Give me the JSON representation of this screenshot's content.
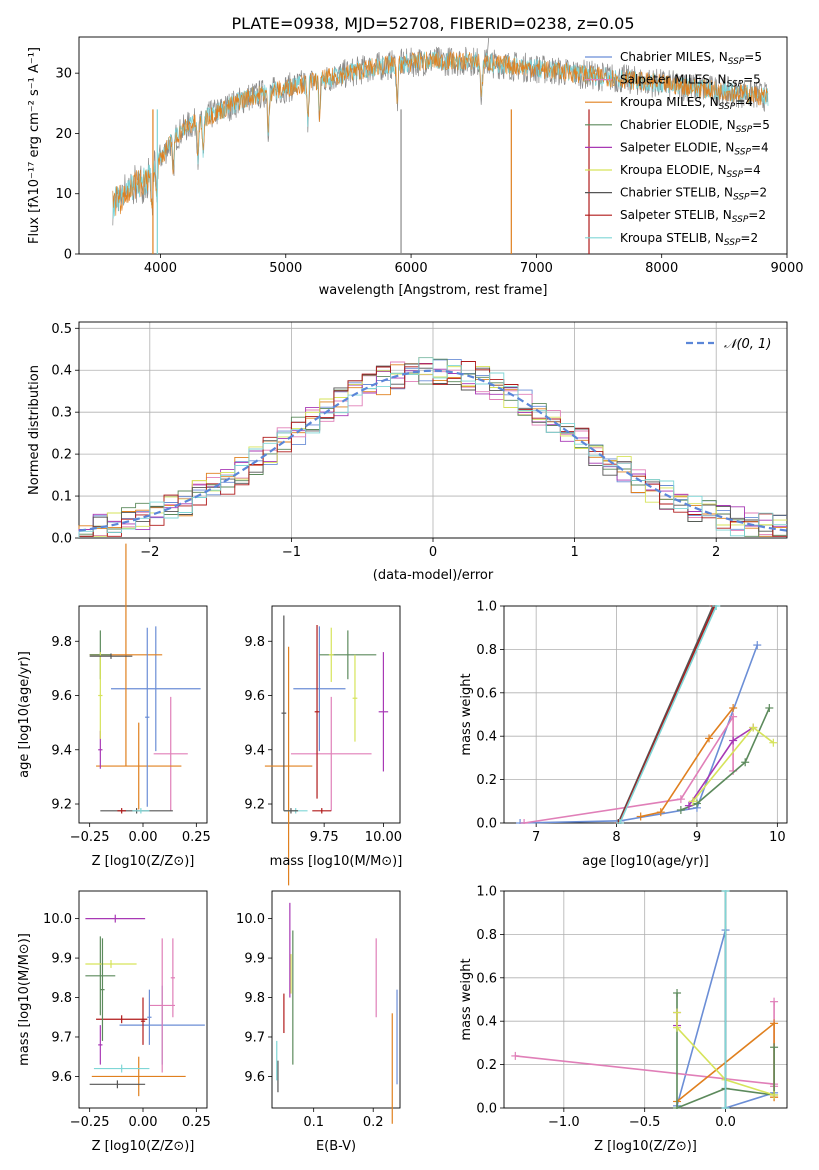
{
  "figure": {
    "title": "PLATE=0938, MJD=52708, FIBERID=0238, z=0.05"
  },
  "colors": {
    "chab_miles": "#6b8ed6",
    "salp_miles": "#e07fb8",
    "krou_miles": "#e0801f",
    "chab_elodie": "#5c8a5c",
    "salp_elodie": "#a839b5",
    "krou_elodie": "#d6e35a",
    "chab_stelib": "#555555",
    "salp_stelib": "#b01a1a",
    "krou_stelib": "#7fd6d6",
    "normal_curve": "#5b86d8",
    "spec_gray": "#8a8a8a",
    "spec_cyan": "#7ad3d6",
    "grid": "#b0b0b0"
  },
  "chart_data": [
    {
      "id": "spectrum",
      "type": "line",
      "xlabel": "wavelength [Angstrom, rest frame]",
      "ylabel": "Flux [fλ10⁻¹⁷ erg cm⁻² s⁻¹ A⁻¹]",
      "xlim": [
        3350,
        9000
      ],
      "ylim": [
        0,
        36
      ],
      "xticks": [
        4000,
        5000,
        6000,
        7000,
        8000,
        9000
      ],
      "yticks": [
        0,
        10,
        20,
        30
      ],
      "grid": false,
      "legend_position": "top-right",
      "legend": [
        {
          "key": "chab_miles",
          "label": "Chabrier MILES, N",
          "sub": "SSP",
          "tail": "=5"
        },
        {
          "key": "salp_miles",
          "label": "Salpeter MILES, N",
          "sub": "SSP",
          "tail": "=5"
        },
        {
          "key": "krou_miles",
          "label": "Kroupa MILES, N",
          "sub": "SSP",
          "tail": "=4"
        },
        {
          "key": "chab_elodie",
          "label": "Chabrier ELODIE, N",
          "sub": "SSP",
          "tail": "=5"
        },
        {
          "key": "salp_elodie",
          "label": "Salpeter ELODIE, N",
          "sub": "SSP",
          "tail": "=4"
        },
        {
          "key": "krou_elodie",
          "label": "Kroupa ELODIE, N",
          "sub": "SSP",
          "tail": "=4"
        },
        {
          "key": "chab_stelib",
          "label": "Chabrier STELIB, N",
          "sub": "SSP",
          "tail": "=2"
        },
        {
          "key": "salp_stelib",
          "label": "Salpeter STELIB, N",
          "sub": "SSP",
          "tail": "=2"
        },
        {
          "key": "krou_stelib",
          "label": "Kroupa STELIB, N",
          "sub": "SSP",
          "tail": "=2"
        }
      ],
      "continuum_x": [
        3620,
        3700,
        3800,
        3900,
        4000,
        4100,
        4200,
        4300,
        4400,
        4500,
        4700,
        4900,
        5100,
        5300,
        5500,
        5700,
        5900,
        6100,
        6300,
        6500,
        6700,
        6900,
        7100,
        7300,
        7500,
        7700,
        7900,
        8100,
        8300,
        8500,
        8700,
        8850
      ],
      "continuum_y": [
        10,
        11,
        13,
        14,
        16,
        19,
        21,
        22,
        23,
        24,
        26,
        27,
        28,
        29,
        30,
        31,
        31.5,
        32,
        32,
        32,
        31.5,
        31,
        30.5,
        30,
        29.5,
        29,
        28.5,
        28,
        27.5,
        27,
        26.5,
        26
      ],
      "absorption_lines": [
        3934,
        3969,
        4102,
        4300,
        4340,
        4861,
        5175,
        5270,
        5890,
        6563
      ]
    },
    {
      "id": "residuals",
      "type": "bar",
      "xlabel": "(data-model)/error",
      "ylabel": "Normed distribution",
      "xlim": [
        -2.5,
        2.5
      ],
      "ylim": [
        0,
        0.515
      ],
      "xticks": [
        -2,
        -1,
        0,
        1,
        2
      ],
      "yticks": [
        0.0,
        0.1,
        0.2,
        0.3,
        0.4,
        0.5
      ],
      "grid": true,
      "legend_position": "top-right",
      "legend_label": "𝒩(0, 1)",
      "bin_width": 0.1,
      "bin_start": -2.5
    },
    {
      "id": "age_vs_Z",
      "type": "scatter",
      "xlabel": "Z [log10(Z/Z⊙)]",
      "ylabel": "age  [log10(age/yr)]",
      "xlim": [
        -0.3,
        0.3
      ],
      "ylim": [
        9.13,
        9.93
      ],
      "xticks": [
        -0.25,
        0.0,
        0.25
      ],
      "yticks": [
        9.2,
        9.4,
        9.6,
        9.8
      ],
      "points": [
        {
          "key": "chab_miles",
          "x": 0.06,
          "y": 9.625,
          "xerr": 0.21,
          "yerr": 0.23
        },
        {
          "key": "salp_miles",
          "x": 0.13,
          "y": 9.385,
          "xerr": 0.08,
          "yerr": 0.21
        },
        {
          "key": "krou_miles",
          "x": -0.08,
          "y": 9.75,
          "xerr": 0.17,
          "yerr": 0.41
        },
        {
          "key": "krou_miles",
          "x": -0.02,
          "y": 9.34,
          "xerr": 0.2,
          "yerr": 0.16
        },
        {
          "key": "chab_elodie",
          "x": -0.2,
          "y": 9.75,
          "xerr": 0.05,
          "yerr": 0.09
        },
        {
          "key": "salp_elodie",
          "x": -0.2,
          "y": 9.4,
          "xerr": 0.01,
          "yerr": 0.07
        },
        {
          "key": "krou_elodie",
          "x": -0.2,
          "y": 9.6,
          "xerr": 0.01,
          "yerr": 0.16
        },
        {
          "key": "chab_stelib",
          "x": -0.15,
          "y": 9.745,
          "xerr": 0.1,
          "yerr": 0.01
        },
        {
          "key": "chab_stelib",
          "x": -0.03,
          "y": 9.175,
          "xerr": 0.17,
          "yerr": 0.01
        },
        {
          "key": "salp_stelib",
          "x": -0.1,
          "y": 9.175,
          "xerr": 0.02,
          "yerr": 0.01
        },
        {
          "key": "krou_stelib",
          "x": -0.01,
          "y": 9.175,
          "xerr": 0.04,
          "yerr": 0.01
        },
        {
          "key": "chab_miles",
          "x": 0.02,
          "y": 9.52,
          "xerr": 0.01,
          "yerr": 0.33
        }
      ]
    },
    {
      "id": "age_vs_mass",
      "type": "scatter",
      "xlabel": "mass [log10(M/M⊙)]",
      "ylabel": "",
      "xlim": [
        9.53,
        10.07
      ],
      "ylim": [
        9.13,
        9.93
      ],
      "xticks": [
        9.75,
        10.0
      ],
      "yticks": [
        9.2,
        9.4,
        9.6,
        9.8
      ],
      "points": [
        {
          "key": "chab_miles",
          "x": 9.73,
          "y": 9.625,
          "xerr": 0.11,
          "yerr": 0.23
        },
        {
          "key": "salp_miles",
          "x": 9.78,
          "y": 9.385,
          "xerr": 0.17,
          "yerr": 0.21
        },
        {
          "key": "krou_miles",
          "x": 9.6,
          "y": 9.34,
          "xerr": 0.1,
          "yerr": 0.44
        },
        {
          "key": "chab_elodie",
          "x": 9.85,
          "y": 9.75,
          "xerr": 0.12,
          "yerr": 0.09
        },
        {
          "key": "salp_elodie",
          "x": 10.0,
          "y": 9.54,
          "xerr": 0.02,
          "yerr": 0.22
        },
        {
          "key": "krou_elodie",
          "x": 9.88,
          "y": 9.59,
          "xerr": 0.01,
          "yerr": 0.16
        },
        {
          "key": "chab_stelib",
          "x": 9.58,
          "y": 9.535,
          "xerr": 0.01,
          "yerr": 0.36
        },
        {
          "key": "salp_stelib",
          "x": 9.74,
          "y": 9.175,
          "xerr": 0.04,
          "yerr": 0.01
        },
        {
          "key": "salp_stelib",
          "x": 9.72,
          "y": 9.54,
          "xerr": 0.01,
          "yerr": 0.32
        },
        {
          "key": "krou_stelib",
          "x": 9.63,
          "y": 9.175,
          "xerr": 0.05,
          "yerr": 0.01
        },
        {
          "key": "chab_stelib",
          "x": 9.61,
          "y": 9.175,
          "xerr": 0.03,
          "yerr": 0.01
        },
        {
          "key": "krou_elodie",
          "x": 9.78,
          "y": 9.75,
          "xerr": 0.01,
          "yerr": 0.1
        }
      ]
    },
    {
      "id": "weight_vs_age",
      "type": "line",
      "xlabel": "age  [log10(age/yr)]",
      "ylabel": "mass weight",
      "xlim": [
        6.6,
        10.12
      ],
      "ylim": [
        0,
        1
      ],
      "xticks": [
        7,
        8,
        9,
        10
      ],
      "yticks": [
        0.0,
        0.2,
        0.4,
        0.6,
        0.8,
        1.0
      ],
      "grid": true,
      "series": [
        {
          "key": "chab_miles",
          "x": [
            6.8,
            8.05,
            9.0,
            9.75
          ],
          "y": [
            0.0,
            0.01,
            0.07,
            0.82
          ]
        },
        {
          "key": "salp_miles",
          "x": [
            6.85,
            8.8,
            9.45,
            9.45
          ],
          "y": [
            0.0,
            0.11,
            0.49,
            0.24
          ]
        },
        {
          "key": "krou_miles",
          "x": [
            8.3,
            8.55,
            9.15,
            9.45
          ],
          "y": [
            0.03,
            0.05,
            0.39,
            0.53
          ]
        },
        {
          "key": "chab_elodie",
          "x": [
            8.8,
            9.0,
            9.6,
            9.9
          ],
          "y": [
            0.06,
            0.09,
            0.28,
            0.53
          ]
        },
        {
          "key": "salp_elodie",
          "x": [
            8.9,
            9.45,
            9.7
          ],
          "y": [
            0.08,
            0.38,
            0.44
          ]
        },
        {
          "key": "krou_elodie",
          "x": [
            8.95,
            9.7,
            9.95
          ],
          "y": [
            0.1,
            0.44,
            0.37
          ]
        },
        {
          "key": "chab_stelib",
          "x": [
            8.02,
            9.2
          ],
          "y": [
            0.0,
            1.0
          ]
        },
        {
          "key": "salp_stelib",
          "x": [
            8.03,
            9.22
          ],
          "y": [
            0.0,
            1.0
          ]
        },
        {
          "key": "krou_stelib",
          "x": [
            8.04,
            9.24
          ],
          "y": [
            0.0,
            1.0
          ]
        }
      ]
    },
    {
      "id": "mass_vs_Z",
      "type": "scatter",
      "xlabel": "Z [log10(Z/Z⊙)]",
      "ylabel": "mass [log10(M/M⊙)]",
      "xlim": [
        -0.3,
        0.3
      ],
      "ylim": [
        9.52,
        10.07
      ],
      "xticks": [
        -0.25,
        0.0,
        0.25
      ],
      "yticks": [
        9.6,
        9.7,
        9.8,
        9.9,
        10.0
      ],
      "points": [
        {
          "key": "chab_miles",
          "x": 0.09,
          "y": 9.73,
          "xerr": 0.2,
          "yerr": 0.1
        },
        {
          "key": "salp_miles",
          "x": 0.09,
          "y": 9.78,
          "xerr": 0.06,
          "yerr": 0.17
        },
        {
          "key": "krou_miles",
          "x": -0.02,
          "y": 9.6,
          "xerr": 0.22,
          "yerr": 0.05
        },
        {
          "key": "chab_elodie",
          "x": -0.2,
          "y": 9.855,
          "xerr": 0.07,
          "yerr": 0.1
        },
        {
          "key": "salp_elodie",
          "x": -0.13,
          "y": 10.0,
          "xerr": 0.14,
          "yerr": 0.01
        },
        {
          "key": "krou_elodie",
          "x": -0.15,
          "y": 9.885,
          "xerr": 0.12,
          "yerr": 0.01
        },
        {
          "key": "chab_stelib",
          "x": -0.12,
          "y": 9.58,
          "xerr": 0.13,
          "yerr": 0.01
        },
        {
          "key": "salp_stelib",
          "x": -0.1,
          "y": 9.745,
          "xerr": 0.12,
          "yerr": 0.01
        },
        {
          "key": "krou_stelib",
          "x": -0.1,
          "y": 9.62,
          "xerr": 0.13,
          "yerr": 0.01
        },
        {
          "key": "salp_elodie",
          "x": -0.2,
          "y": 9.68,
          "xerr": 0.01,
          "yerr": 0.05
        },
        {
          "key": "chab_elodie",
          "x": -0.19,
          "y": 9.82,
          "xerr": 0.01,
          "yerr": 0.13
        },
        {
          "key": "salp_stelib",
          "x": 0.0,
          "y": 9.74,
          "xerr": 0.01,
          "yerr": 0.06
        },
        {
          "key": "salp_miles",
          "x": 0.14,
          "y": 9.85,
          "xerr": 0.01,
          "yerr": 0.1
        },
        {
          "key": "chab_miles",
          "x": 0.03,
          "y": 9.75,
          "xerr": 0.01,
          "yerr": 0.07
        }
      ]
    },
    {
      "id": "EBV",
      "type": "scatter",
      "xlabel": "E(B-V)",
      "ylabel": "",
      "xlim": [
        0.03,
        0.245
      ],
      "ylim": [
        9.52,
        10.07
      ],
      "xticks": [
        0.1,
        0.2
      ],
      "yticks": [
        9.6,
        9.7,
        9.8,
        9.9,
        10.0
      ],
      "points": [
        {
          "key": "chab_miles",
          "x": 0.24,
          "y": 9.7,
          "xerr": 0.0,
          "yerr": 0.12
        },
        {
          "key": "salp_miles",
          "x": 0.205,
          "y": 9.85,
          "xerr": 0.0,
          "yerr": 0.1
        },
        {
          "key": "krou_miles",
          "x": 0.232,
          "y": 9.62,
          "xerr": 0.0,
          "yerr": 0.14
        },
        {
          "key": "chab_elodie",
          "x": 0.065,
          "y": 9.8,
          "xerr": 0.0,
          "yerr": 0.17
        },
        {
          "key": "salp_elodie",
          "x": 0.06,
          "y": 9.92,
          "xerr": 0.0,
          "yerr": 0.12
        },
        {
          "key": "krou_elodie",
          "x": 0.062,
          "y": 9.86,
          "xerr": 0.0,
          "yerr": 0.05
        },
        {
          "key": "chab_stelib",
          "x": 0.04,
          "y": 9.6,
          "xerr": 0.0,
          "yerr": 0.04
        },
        {
          "key": "salp_stelib",
          "x": 0.05,
          "y": 9.76,
          "xerr": 0.0,
          "yerr": 0.05
        },
        {
          "key": "krou_stelib",
          "x": 0.038,
          "y": 9.64,
          "xerr": 0.0,
          "yerr": 0.05
        }
      ]
    },
    {
      "id": "weight_vs_Z",
      "type": "line",
      "xlabel": "Z [log10(Z/Z⊙)]",
      "ylabel": "mass weight",
      "xlim": [
        -1.37,
        0.38
      ],
      "ylim": [
        0,
        1
      ],
      "xticks": [
        -1.0,
        -0.5,
        0.0
      ],
      "yticks": [
        0.0,
        0.2,
        0.4,
        0.6,
        0.8,
        1.0
      ],
      "grid": true,
      "series": [
        {
          "key": "chab_miles",
          "x": [
            0.3,
            0.0,
            0.0,
            -0.3
          ],
          "y": [
            0.07,
            0.0,
            0.82,
            0.01
          ]
        },
        {
          "key": "salp_miles",
          "x": [
            -1.3,
            0.3,
            0.3,
            0.3
          ],
          "y": [
            0.24,
            0.11,
            0.49,
            0.1
          ]
        },
        {
          "key": "krou_miles",
          "x": [
            -0.3,
            0.3,
            0.3,
            0.3
          ],
          "y": [
            0.03,
            0.39,
            0.05,
            0.05
          ]
        },
        {
          "key": "chab_elodie",
          "x": [
            -0.3,
            -0.3,
            0.0,
            0.3,
            0.3
          ],
          "y": [
            0.53,
            0.0,
            0.09,
            0.06,
            0.28
          ]
        },
        {
          "key": "salp_elodie",
          "x": [
            -0.3,
            -0.3
          ],
          "y": [
            0.44,
            0.38
          ]
        },
        {
          "key": "krou_elodie",
          "x": [
            -0.3,
            -0.3,
            0.0,
            0.3
          ],
          "y": [
            0.44,
            0.37,
            0.13,
            0.06
          ]
        },
        {
          "key": "chab_stelib",
          "x": [
            0.0,
            0.0
          ],
          "y": [
            0.0,
            1.0
          ]
        },
        {
          "key": "krou_stelib",
          "x": [
            0.0,
            0.0
          ],
          "y": [
            0.0,
            1.0
          ]
        }
      ]
    }
  ]
}
